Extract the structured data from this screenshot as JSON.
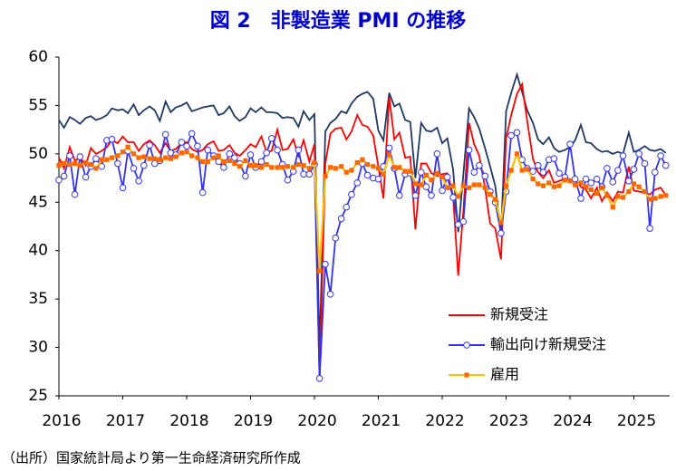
{
  "chart_data": {
    "type": "line",
    "title": "図 2　非製造業 PMI の推移",
    "note": "（出所）国家統計局より第一生命経済研究所作成",
    "x": [
      2016,
      2016.08,
      2016.17,
      2016.25,
      2016.33,
      2016.42,
      2016.5,
      2016.58,
      2016.67,
      2016.75,
      2016.83,
      2016.92,
      2017,
      2017.08,
      2017.17,
      2017.25,
      2017.33,
      2017.42,
      2017.5,
      2017.58,
      2017.67,
      2017.75,
      2017.83,
      2017.92,
      2018,
      2018.08,
      2018.17,
      2018.25,
      2018.33,
      2018.42,
      2018.5,
      2018.58,
      2018.67,
      2018.75,
      2018.83,
      2018.92,
      2019,
      2019.08,
      2019.17,
      2019.25,
      2019.33,
      2019.42,
      2019.5,
      2019.58,
      2019.67,
      2019.75,
      2019.83,
      2019.92,
      2020,
      2020.08,
      2020.17,
      2020.25,
      2020.33,
      2020.42,
      2020.5,
      2020.58,
      2020.67,
      2020.75,
      2020.83,
      2020.92,
      2021,
      2021.08,
      2021.17,
      2021.25,
      2021.33,
      2021.42,
      2021.5,
      2021.58,
      2021.67,
      2021.75,
      2021.83,
      2021.92,
      2022,
      2022.08,
      2022.17,
      2022.25,
      2022.33,
      2022.42,
      2022.5,
      2022.58,
      2022.67,
      2022.75,
      2022.83,
      2022.92,
      2023,
      2023.08,
      2023.17,
      2023.25,
      2023.33,
      2023.42,
      2023.5,
      2023.58,
      2023.67,
      2023.75,
      2023.83,
      2023.92,
      2024,
      2024.08,
      2024.17,
      2024.25,
      2024.33,
      2024.42,
      2024.5,
      2024.58,
      2024.67,
      2024.75,
      2024.83,
      2024.92,
      2025,
      2025.08,
      2025.17,
      2025.25,
      2025.33,
      2025.42,
      2025.5
    ],
    "xlim": [
      2016,
      2025.56
    ],
    "xticks": [
      2016,
      2017,
      2018,
      2019,
      2020,
      2021,
      2022,
      2023,
      2024,
      2025
    ],
    "ylim": [
      25,
      60
    ],
    "yticks": [
      25,
      30,
      35,
      40,
      45,
      50,
      55,
      60
    ],
    "legend": "lower right",
    "series": [
      {
        "color": "#1f3864",
        "marker": null,
        "values": [
          53.5,
          52.7,
          53.8,
          53.5,
          53.1,
          53.7,
          53.9,
          53.5,
          53.7,
          54.0,
          54.7,
          54.5,
          54.6,
          54.2,
          55.1,
          54.0,
          54.5,
          54.9,
          54.5,
          53.4,
          55.4,
          54.3,
          54.8,
          55.0,
          55.3,
          54.4,
          54.6,
          54.8,
          54.9,
          55.0,
          54.0,
          54.2,
          54.9,
          53.9,
          53.4,
          53.8,
          54.7,
          54.3,
          54.8,
          54.3,
          54.3,
          54.2,
          53.7,
          53.8,
          53.7,
          52.8,
          54.4,
          53.5,
          54.1,
          29.6,
          52.3,
          53.2,
          53.6,
          54.4,
          54.2,
          55.2,
          55.9,
          56.2,
          56.4,
          55.7,
          52.4,
          51.4,
          56.3,
          54.9,
          55.2,
          53.5,
          53.3,
          47.5,
          53.2,
          52.4,
          52.3,
          52.7,
          51.1,
          51.6,
          48.4,
          41.9,
          47.8,
          54.7,
          53.8,
          52.6,
          50.6,
          48.7,
          46.7,
          41.6,
          54.4,
          56.3,
          58.2,
          56.4,
          54.5,
          53.2,
          51.5,
          51.0,
          51.7,
          50.6,
          50.2,
          50.4,
          50.7,
          51.4,
          53.0,
          51.2,
          51.1,
          50.5,
          50.2,
          50.3,
          50.0,
          50.2,
          50.0,
          52.2,
          50.2,
          50.4,
          50.8,
          50.4,
          50.3,
          50.5,
          50.1
        ]
      },
      {
        "name": "新規受注",
        "color": "#ff0000",
        "marker": null,
        "values": [
          49.6,
          48.5,
          50.7,
          49.3,
          49.6,
          48.8,
          50.6,
          50.0,
          50.3,
          50.7,
          51.4,
          51.1,
          51.8,
          51.2,
          51.2,
          50.3,
          51.0,
          51.4,
          50.9,
          50.1,
          51.1,
          50.3,
          50.5,
          51.1,
          51.2,
          50.5,
          50.2,
          50.4,
          51.0,
          51.3,
          50.3,
          50.4,
          50.9,
          50.1,
          49.8,
          50.4,
          51.0,
          50.7,
          51.8,
          50.2,
          50.3,
          52.5,
          50.4,
          50.5,
          51.5,
          49.8,
          51.4,
          49.2,
          51.0,
          26.5,
          49.0,
          52.1,
          52.6,
          52.7,
          51.5,
          52.3,
          54.0,
          53.0,
          52.8,
          51.9,
          48.7,
          45.4,
          55.9,
          51.5,
          52.2,
          49.6,
          49.7,
          42.2,
          49.0,
          49.0,
          48.0,
          47.7,
          47.9,
          48.0,
          45.7,
          37.4,
          44.0,
          53.2,
          51.0,
          49.8,
          46.5,
          42.8,
          42.3,
          39.1,
          51.6,
          54.0,
          56.2,
          57.2,
          53.4,
          49.5,
          48.1,
          47.5,
          48.3,
          47.0,
          47.2,
          47.4,
          47.4,
          47.3,
          46.6,
          46.3,
          45.4,
          46.5,
          45.1,
          46.0,
          45.1,
          46.1,
          46.0,
          48.7,
          46.2,
          46.1,
          46.0,
          45.8,
          46.3,
          46.5,
          45.7
        ]
      },
      {
        "name": "輸出向け新規受注",
        "color": "#3333ee",
        "marker": "circle",
        "marker_color": "#ffffff",
        "values": [
          47.3,
          47.7,
          49.8,
          45.8,
          49.7,
          47.6,
          48.7,
          49.5,
          48.7,
          51.4,
          51.5,
          49.0,
          46.5,
          50.3,
          48.5,
          47.2,
          48.8,
          50.9,
          49.0,
          49.3,
          52.0,
          50.1,
          49.9,
          51.2,
          50.8,
          52.1,
          50.8,
          46.0,
          50.4,
          49.8,
          49.2,
          48.6,
          50.0,
          49.6,
          49.0,
          47.7,
          49.9,
          48.6,
          49.2,
          50.1,
          51.6,
          50.4,
          48.9,
          47.3,
          48.2,
          50.4,
          47.9,
          47.9,
          48.9,
          26.8,
          38.6,
          35.5,
          41.3,
          43.3,
          44.5,
          45.8,
          47.0,
          49.0,
          47.8,
          47.5,
          47.4,
          48.7,
          50.6,
          48.5,
          45.7,
          47.9,
          48.0,
          45.7,
          48.1,
          46.6,
          45.7,
          50.0,
          46.2,
          47.6,
          45.5,
          42.7,
          43.0,
          50.4,
          48.1,
          48.8,
          47.7,
          46.1,
          45.0,
          41.8,
          46.1,
          51.9,
          52.2,
          49.4,
          48.5,
          48.2,
          48.8,
          48.1,
          49.4,
          49.5,
          48.0,
          47.6,
          51.0,
          47.4,
          45.4,
          47.4,
          47.0,
          47.4,
          46.6,
          48.5,
          47.1,
          48.3,
          49.8,
          47.2,
          48.4,
          50.0,
          49.0,
          42.3,
          48.1,
          49.8,
          48.8
        ]
      },
      {
        "name": "雇用",
        "color": "#ffc000",
        "marker": "square",
        "marker_color": "#ff6600",
        "values": [
          48.8,
          49.0,
          48.9,
          49.0,
          48.8,
          49.1,
          48.9,
          48.5,
          49.4,
          49.4,
          49.6,
          49.8,
          50.2,
          50.7,
          50.0,
          49.6,
          49.7,
          49.5,
          49.5,
          49.4,
          49.6,
          49.5,
          49.7,
          50.1,
          50.2,
          49.8,
          49.6,
          49.2,
          49.2,
          49.6,
          49.8,
          49.2,
          49.3,
          49.0,
          48.7,
          49.3,
          48.8,
          48.8,
          48.6,
          48.9,
          48.6,
          48.6,
          48.6,
          48.7,
          48.6,
          48.9,
          48.8,
          48.5,
          49.1,
          37.9,
          47.7,
          48.6,
          48.5,
          48.7,
          48.1,
          48.3,
          49.1,
          49.4,
          48.9,
          48.7,
          48.5,
          47.9,
          49.9,
          48.6,
          48.6,
          48.2,
          48.2,
          46.9,
          46.8,
          47.8,
          47.3,
          48.0,
          47.6,
          46.5,
          46.7,
          45.6,
          46.7,
          46.5,
          46.8,
          46.8,
          46.5,
          45.8,
          45.3,
          42.9,
          46.7,
          48.3,
          50.0,
          48.3,
          48.4,
          47.4,
          46.9,
          46.7,
          47.0,
          46.6,
          46.7,
          47.3,
          47.2,
          46.8,
          47.0,
          46.6,
          46.3,
          45.9,
          46.5,
          45.7,
          44.5,
          45.6,
          45.5,
          46.1,
          46.9,
          46.6,
          46.1,
          45.3,
          45.4,
          45.6,
          45.7
        ]
      }
    ]
  }
}
